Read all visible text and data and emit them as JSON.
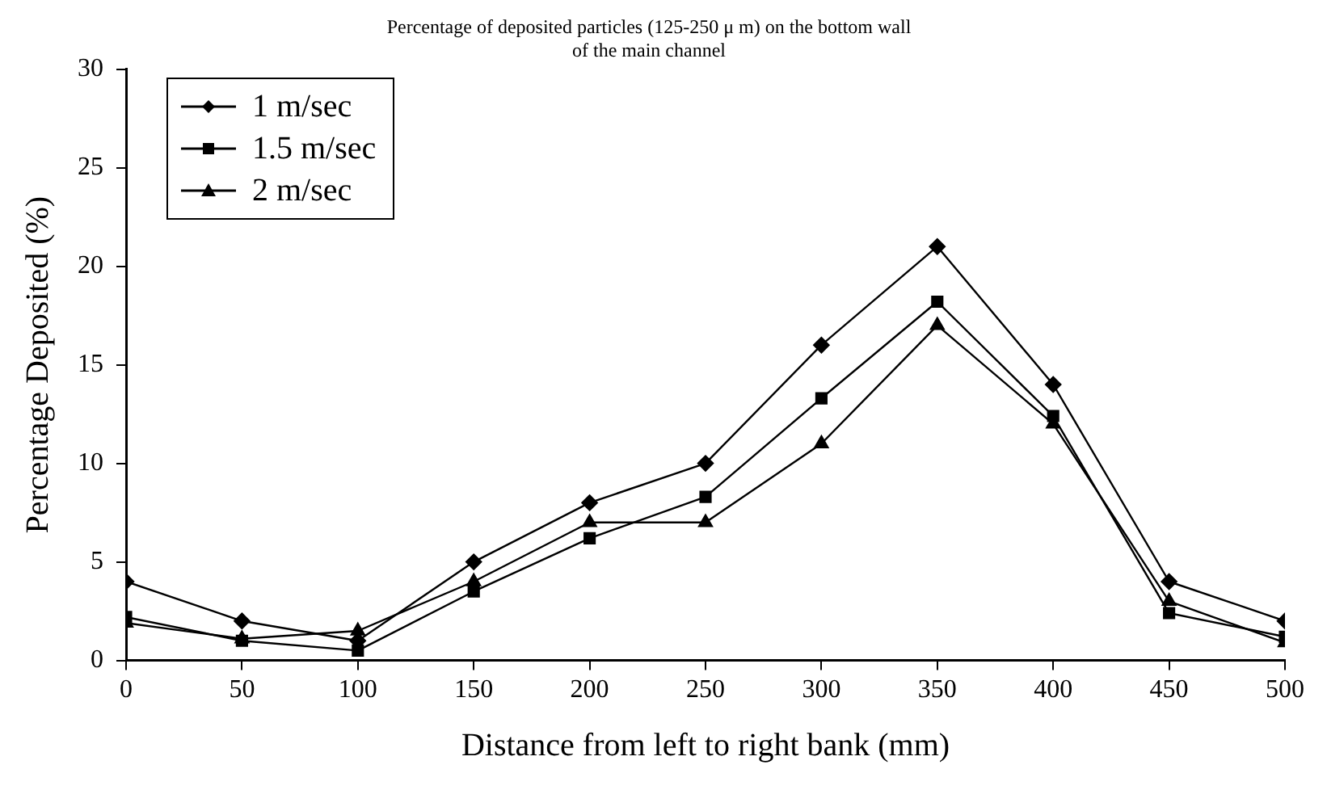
{
  "chart_data": {
    "type": "line",
    "title": "Percentage of deposited particles (125-250 μ m) on the bottom wall\nof the main channel",
    "xlabel": "Distance from left to right bank (mm)",
    "ylabel": "Percentage Deposited (%)",
    "x": [
      0,
      50,
      100,
      150,
      200,
      250,
      300,
      350,
      400,
      450,
      500
    ],
    "series": [
      {
        "name": "1 m/sec",
        "color": "#000000",
        "marker": "diamond",
        "values": [
          4,
          2,
          1,
          5,
          8,
          10,
          16,
          21,
          14,
          4,
          2
        ]
      },
      {
        "name": "1.5 m/sec",
        "color": "#000000",
        "marker": "square",
        "values": [
          2.2,
          1,
          0.5,
          3.5,
          6.2,
          8.3,
          13.3,
          18.2,
          12.4,
          2.4,
          1.2
        ]
      },
      {
        "name": "2 m/sec",
        "color": "#000000",
        "marker": "triangle",
        "values": [
          1.9,
          1.1,
          1.5,
          4,
          7,
          7,
          11,
          17,
          12,
          3,
          0.9
        ]
      }
    ],
    "xlim": [
      0,
      500
    ],
    "xticks": [
      0,
      50,
      100,
      150,
      200,
      250,
      300,
      350,
      400,
      450,
      500
    ],
    "ylim": [
      0,
      30
    ],
    "yticks": [
      0,
      5,
      10,
      15,
      20,
      25,
      30
    ],
    "grid": false,
    "legend": "top left",
    "line_style": "solid"
  }
}
